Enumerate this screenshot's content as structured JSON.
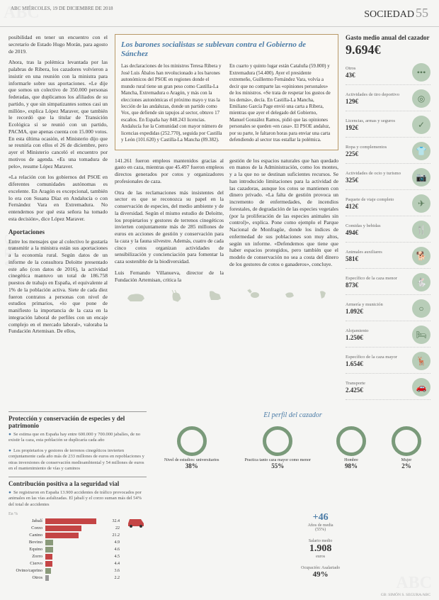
{
  "header": {
    "date": "ABC MIÉRCOLES, 19 DE DICIEMBRE DE 2018",
    "section": "SOCIEDAD",
    "page": "55"
  },
  "watermark": "ABC",
  "article": {
    "para1": "posibilidad en tener un encuentro con el secretario de Estado Hugo Morán, para agosto de 2019.",
    "para2": "Ahora, tras la polémica levantada por las palabras de Ribera, los cazadores volvieron a insistir en una reunión con la ministra para informarle sobre sus aportaciones. «Le dije que somos un colectivo de 350.000 personas federadas, que duplicamos los afiliados de su partido, y que sin simpatizantes somos casi un millón», explica López Maraver, que también le recordó que la titular de Transición Ecológica sí se reunió con un partido, PACMA, que apenas cuenta con 15.000 votos. En esta última ocasión, el Ministerio dijo que se reuniría con ellos el 26 de diciembre, pero ayer el Ministerio canceló el encuentro por motivos de agenda. «Es una tomadura de pelo», resume López Maraver.",
    "para3": "«La relación con los gobiernos del PSOE en diferentes comunidades autónomas es excelente. En Aragón es excepcional, también lo era con Susana Díaz en Andalucía o con Fernández Vara en Extremadura. No entendemos por qué esta señora ha tomado esta decisión», dice López Maraver.",
    "subhead1": "Aportaciones",
    "para4": "Entre los mensajes que al colectivo le gustaría transmitir a la ministra están sus aportaciones a la economía rural. Según datos de un informe de la consultora Deloitte presentado este año (con datos de 2016), la actividad cinegética mantuvo un total de 186.758 puestos de trabajo en España, el equivalente al 1% de la población activa. Siete de cada diez fueron contratos a personas con nivel de estudios primarios, «lo que pone de manifiesto la importancia de la caza en la integración laboral de perfiles con un encaje complejo en el mercado laboral», valoraba la Fundación Artemisan. De ellos,",
    "para5": "141.261 fueron empleos mantenidos gracias al gasto en caza, mientras que 45.497 fueron empleos directos generados por cotos y organizadores profesionales de caza.",
    "para6": "Otra de las reclamaciones más insistentes del sector es que se reconozca su papel en la conservación de especies, del medio ambiente y de la diversidad. Según el mismo estudio de Deloitte, los propietarios y gestores de terrenos cinegéticos invierten conjuntamente más de 285 millones de euros en acciones de gestión y conservación para la caza y la fauna silvestre. Además, cuatro de cada cinco cotos organizan actividades de sensibilización y concienciación para fomentar la caza sostenible de la biodiversidad.",
    "para7": "Luis Fernando Villanueva, director de la Fundación Artemisan, critica la",
    "para8": "gestión de los espacios naturales que han quedado en manos de la Administración, como los montes, y a la que no se destinan suficientes recursos. Se han introducido limitaciones para la actividad de las cazadoras, aunque los cotos se mantienen con dinero privado. «La falta de gestión provoca un incremento de enfermedades, de incendios forestales, de degradación de las especies vegetales (por la proliferación de las especies animales sin control)», explica. Pone como ejemplo el Parque Nacional de Monfragüe, donde los índices de enfermedad de sus poblaciones son muy altos, según un informe. «Defendemos que tiene que haber espacios protegidos, pero también que el modelo de conservación no sea a costa del dinero de los gestores de cotos o ganaderos», concluye."
  },
  "boxed": {
    "title": "Los barones socialistas se sublevan contra el Gobierno de Sánchez",
    "text": "Las declaraciones de los ministros Teresa Ribera y José Luis Ábalos han revolucionado a los barones autonómicos del PSOE en regiones donde el mundo rural tiene un gran peso como Castilla-La Mancha, Extremadura o Aragón, y más con la elecciones autonómicas el próximo mayo y tras la lección de las andaluzas, donde un partido como Vox, que defiende sin tapujos al sector, obtuvo 17 escaños. En España hay 848.243 licencias. Andalucía fue la Comunidad con mayor número de licencias expedidas (252.770), seguida por Castilla y León (101.620) y Castilla-La Mancha (89.382). En cuarto y quinto lugar están Cataluña (59.800) y Extremadura (54.400). Ayer el presidente extremeño, Guillermo Fernández Vara, volvía a decir que no comparte las «opiniones personales» de los ministros. «Se trata de respetar los gustos de los demás», decía. En Castilla-La Mancha, Emiliano García Page envió una carta a Ribera, mientras que ayer el delegado del Gobierno, Manuel González Ramos, pidió que las opiniones personales se queden «en casa». El PSOE andaluz, por su parte, le faltaron horas para enviar una carta defendiendo al sector tras estallar la polémica."
  },
  "sidebar": {
    "title": "Gasto medio anual del cazador",
    "total": "9.694€",
    "items": [
      {
        "label": "Otros",
        "val": "43€",
        "icon": "•••"
      },
      {
        "label": "Actividades de tiro deportivo",
        "val": "129€",
        "icon": "◎"
      },
      {
        "label": "Licencias, armas y seguros",
        "val": "192€",
        "icon": "✓"
      },
      {
        "label": "Ropa y complementos",
        "val": "225€",
        "icon": "👕"
      },
      {
        "label": "Actividades de ocio y turismo",
        "val": "325€",
        "icon": "📷"
      },
      {
        "label": "Paquete de viaje completo",
        "val": "412€",
        "icon": "✈"
      },
      {
        "label": "Comidas y bebidas",
        "val": "494€",
        "icon": "🍴"
      },
      {
        "label": "Animales auxiliares",
        "val": "581€",
        "icon": "🐕"
      },
      {
        "label": "Específico de la caza menor",
        "val": "873€",
        "icon": "🐇"
      },
      {
        "label": "Armería y munición",
        "val": "1.092€",
        "icon": "○"
      },
      {
        "label": "Alojamiento",
        "val": "1.250€",
        "icon": "🛏"
      },
      {
        "label": "Específico de la caza mayor",
        "val": "1.654€",
        "icon": "🦌"
      },
      {
        "label": "Transporte",
        "val": "2.425€",
        "icon": "🚗"
      }
    ]
  },
  "protection": {
    "title": "Protección y conservación de especies y del patrimonio",
    "bullet1": "Se estima que en España hay entre 600.000 y 700.000 jabalíes, de no existir la caza, esta población se duplicaría cada año",
    "bullet2": "Los propietarios y gestores de terrenos cinegéticos invierten conjuntamente cada año más de 233 millones de euros en repoblaciones y otras inversiones de conservación medioambiental y 54 millones de euros en el mantenimiento de vías y caminos"
  },
  "roadSafety": {
    "title": "Contribución positiva a la seguridad vial",
    "text": "Se registraron en España 13.900 accidentes de tráfico provocados por animales en las vías asfalizadas. El jabalí y el corzo suman más del 54% del total de accidentes",
    "barsTitle": "En %",
    "bars": [
      {
        "label": "Jabalí",
        "val": 32.4,
        "color": "#c44545"
      },
      {
        "label": "Corzo",
        "val": 22.0,
        "color": "#c44545"
      },
      {
        "label": "Canino",
        "val": 21.2,
        "color": "#c44545"
      },
      {
        "label": "Bovino",
        "val": 4.9,
        "color": "#8a9a7a"
      },
      {
        "label": "Equino",
        "val": 4.6,
        "color": "#8a9a7a"
      },
      {
        "label": "Zorro",
        "val": 4.5,
        "color": "#c44545"
      },
      {
        "label": "Ciervo",
        "val": 4.4,
        "color": "#c44545"
      },
      {
        "label": "Ovino/caprino",
        "val": 3.6,
        "color": "#8a9a7a"
      },
      {
        "label": "Otros",
        "val": 2.2,
        "color": "#999"
      }
    ]
  },
  "profile": {
    "title": "El perfil del cazador",
    "circles": [
      {
        "label": "Nivel de estudios: universitarios",
        "val": "38%"
      },
      {
        "label": "Practica tanto caza mayor como menor",
        "val": "55%"
      },
      {
        "label": "Hombre",
        "val": "98%"
      },
      {
        "label": "Mujer",
        "val": "2%"
      }
    ],
    "extras": [
      {
        "num": "+46",
        "label": "Años de media",
        "sub": "(55%)"
      },
      {
        "num": "1.908",
        "label": "Salario medio",
        "unit": "euros"
      },
      {
        "num": "49%",
        "label": "Ocupación: Asalariado"
      }
    ]
  },
  "credit": "GB: SIMÓN S. SEGURA/ABC"
}
